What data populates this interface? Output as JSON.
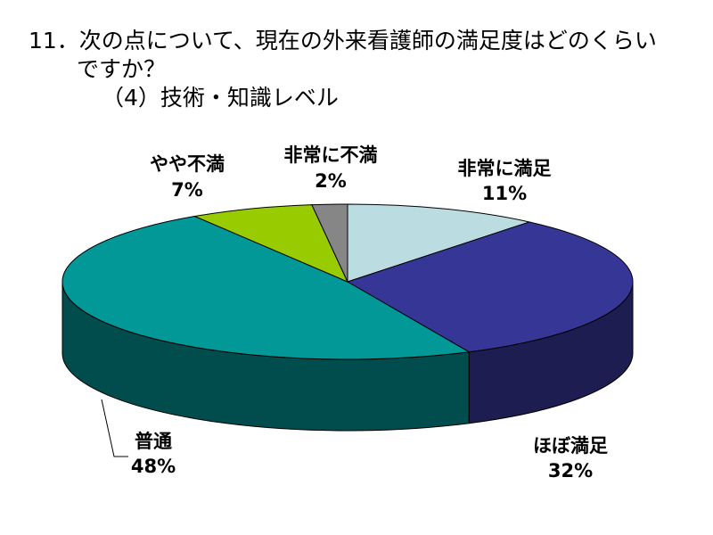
{
  "title": {
    "line1": "11．次の点について、現在の外来看護師の満足度はどのくらい",
    "line2": "ですか？",
    "line3": "（4）技術・知識レベル"
  },
  "chart_data": {
    "type": "pie",
    "style": "3d",
    "categories": [
      "非常に満足",
      "ほぼ満足",
      "普通",
      "やや不満",
      "非常に不満"
    ],
    "values": [
      11,
      32,
      48,
      7,
      2
    ],
    "value_labels": [
      "11%",
      "32%",
      "48%",
      "7%",
      "2%"
    ],
    "colors": [
      "#BBDDE2",
      "#363696",
      "#029898",
      "#99CC00",
      "#868686"
    ],
    "side_colors": [
      "#8DA6AA",
      "#1D1D52",
      "#014C4C",
      "#6E9200",
      "#5A5A5A"
    ],
    "start": "12 o'clock",
    "direction": "clockwise"
  }
}
